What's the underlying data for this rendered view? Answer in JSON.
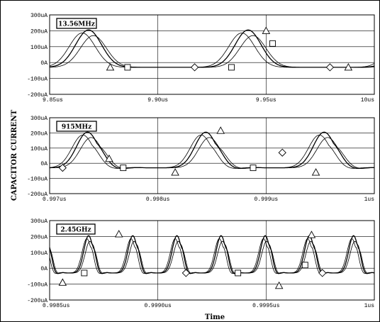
{
  "figure": {
    "ylabel": "CAPACITOR CURRENT",
    "xlabel": "Time"
  },
  "chart_data": [
    {
      "type": "line",
      "label": "13.56MHz",
      "ylim": [
        -200,
        300
      ],
      "yticks": [
        300,
        200,
        100,
        0,
        -100,
        -200
      ],
      "ytick_labels": [
        "300uA",
        "200uA",
        "100uA",
        "0A",
        "-100uA",
        "-200uA"
      ],
      "xlim": [
        9.85,
        10.0
      ],
      "xticks": [
        9.85,
        9.9,
        9.95,
        10.0
      ],
      "xtick_labels": [
        "9.85us",
        "9.90us",
        "9.95us",
        "10us"
      ],
      "grid": true,
      "waveform": {
        "period": 0.0737,
        "phase": 0.8766,
        "baseline": -30,
        "peak": 205,
        "width": 0.006
      },
      "markers": [
        {
          "shape": "triangle",
          "x": 9.878,
          "y": -30
        },
        {
          "shape": "square",
          "x": 9.886,
          "y": -30
        },
        {
          "shape": "diamond",
          "x": 9.917,
          "y": -30
        },
        {
          "shape": "square",
          "x": 9.934,
          "y": -30
        },
        {
          "shape": "triangle",
          "x": 9.95,
          "y": 200
        },
        {
          "shape": "square",
          "x": 9.953,
          "y": 120
        },
        {
          "shape": "diamond",
          "x": 9.9795,
          "y": -30
        },
        {
          "shape": "triangle",
          "x": 9.988,
          "y": -30
        }
      ]
    },
    {
      "type": "line",
      "label": "915MHz",
      "ylim": [
        -200,
        300
      ],
      "yticks": [
        300,
        200,
        100,
        0,
        -100,
        -200
      ],
      "ytick_labels": [
        "300uA",
        "200uA",
        "100uA",
        "0A",
        "-100uA",
        "-200uA"
      ],
      "xlim": [
        0.997,
        1.0
      ],
      "xticks": [
        0.997,
        0.998,
        0.999,
        1.0
      ],
      "xtick_labels": [
        "0.997us",
        "0.998us",
        "0.999us",
        "1us"
      ],
      "grid": true,
      "waveform": {
        "period": 0.001093,
        "phase": 0.99735,
        "baseline": -30,
        "peak": 205,
        "width": 0.0001,
        "ringing": 0.6
      },
      "markers": [
        {
          "shape": "diamond",
          "x": 0.99712,
          "y": -30
        },
        {
          "shape": "triangle",
          "x": 0.99755,
          "y": 30
        },
        {
          "shape": "square",
          "x": 0.99768,
          "y": -30
        },
        {
          "shape": "triangle",
          "x": 0.99816,
          "y": -60
        },
        {
          "shape": "triangle",
          "x": 0.99858,
          "y": 215
        },
        {
          "shape": "square",
          "x": 0.99888,
          "y": -30
        },
        {
          "shape": "diamond",
          "x": 0.99915,
          "y": 70
        },
        {
          "shape": "triangle",
          "x": 0.99946,
          "y": -60
        }
      ]
    },
    {
      "type": "line",
      "label": "2.45GHz",
      "ylim": [
        -200,
        300
      ],
      "yticks": [
        300,
        200,
        100,
        0,
        -100,
        -200
      ],
      "ytick_labels": [
        "300uA",
        "200uA",
        "100uA",
        "0A",
        "-100uA",
        "-200uA"
      ],
      "xlim": [
        0.9985,
        1.0
      ],
      "xticks": [
        0.9985,
        0.999,
        0.9995,
        1.0
      ],
      "xtick_labels": [
        "0.9985us",
        "0.9990us",
        "0.9995us",
        "1us"
      ],
      "grid": true,
      "waveform": {
        "period": 0.000204,
        "phase": 0.99868,
        "baseline": -30,
        "peak": 205,
        "width": 2.2e-05,
        "ringing": 1.0
      },
      "markers": [
        {
          "shape": "triangle",
          "x": 0.99856,
          "y": -90
        },
        {
          "shape": "square",
          "x": 0.99866,
          "y": -30
        },
        {
          "shape": "triangle",
          "x": 0.99882,
          "y": 215
        },
        {
          "shape": "diamond",
          "x": 0.99913,
          "y": -30
        },
        {
          "shape": "square",
          "x": 0.99937,
          "y": -30
        },
        {
          "shape": "triangle",
          "x": 0.99956,
          "y": -110
        },
        {
          "shape": "square",
          "x": 0.99968,
          "y": 20
        },
        {
          "shape": "triangle",
          "x": 0.99971,
          "y": 210
        },
        {
          "shape": "diamond",
          "x": 0.99976,
          "y": -30
        }
      ]
    }
  ]
}
